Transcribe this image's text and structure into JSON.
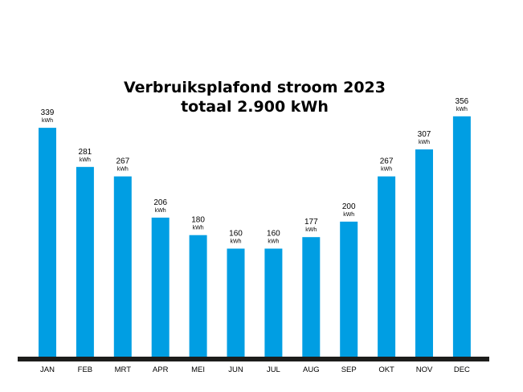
{
  "chart_data": {
    "type": "bar",
    "title": "Verbruiksplafond stroom 2023",
    "subtitle": "totaal 2.900 kWh",
    "categories": [
      "JAN",
      "FEB",
      "MRT",
      "APR",
      "MEI",
      "JUN",
      "JUL",
      "AUG",
      "SEP",
      "OKT",
      "NOV",
      "DEC"
    ],
    "values": [
      339,
      281,
      267,
      206,
      180,
      160,
      160,
      177,
      200,
      267,
      307,
      356
    ],
    "value_unit": "kWh",
    "ylim": [
      0,
      380
    ],
    "grid": false,
    "legend": "none",
    "colors": {
      "bar": "#009ee3",
      "baseline": "#1d1d1b"
    }
  }
}
